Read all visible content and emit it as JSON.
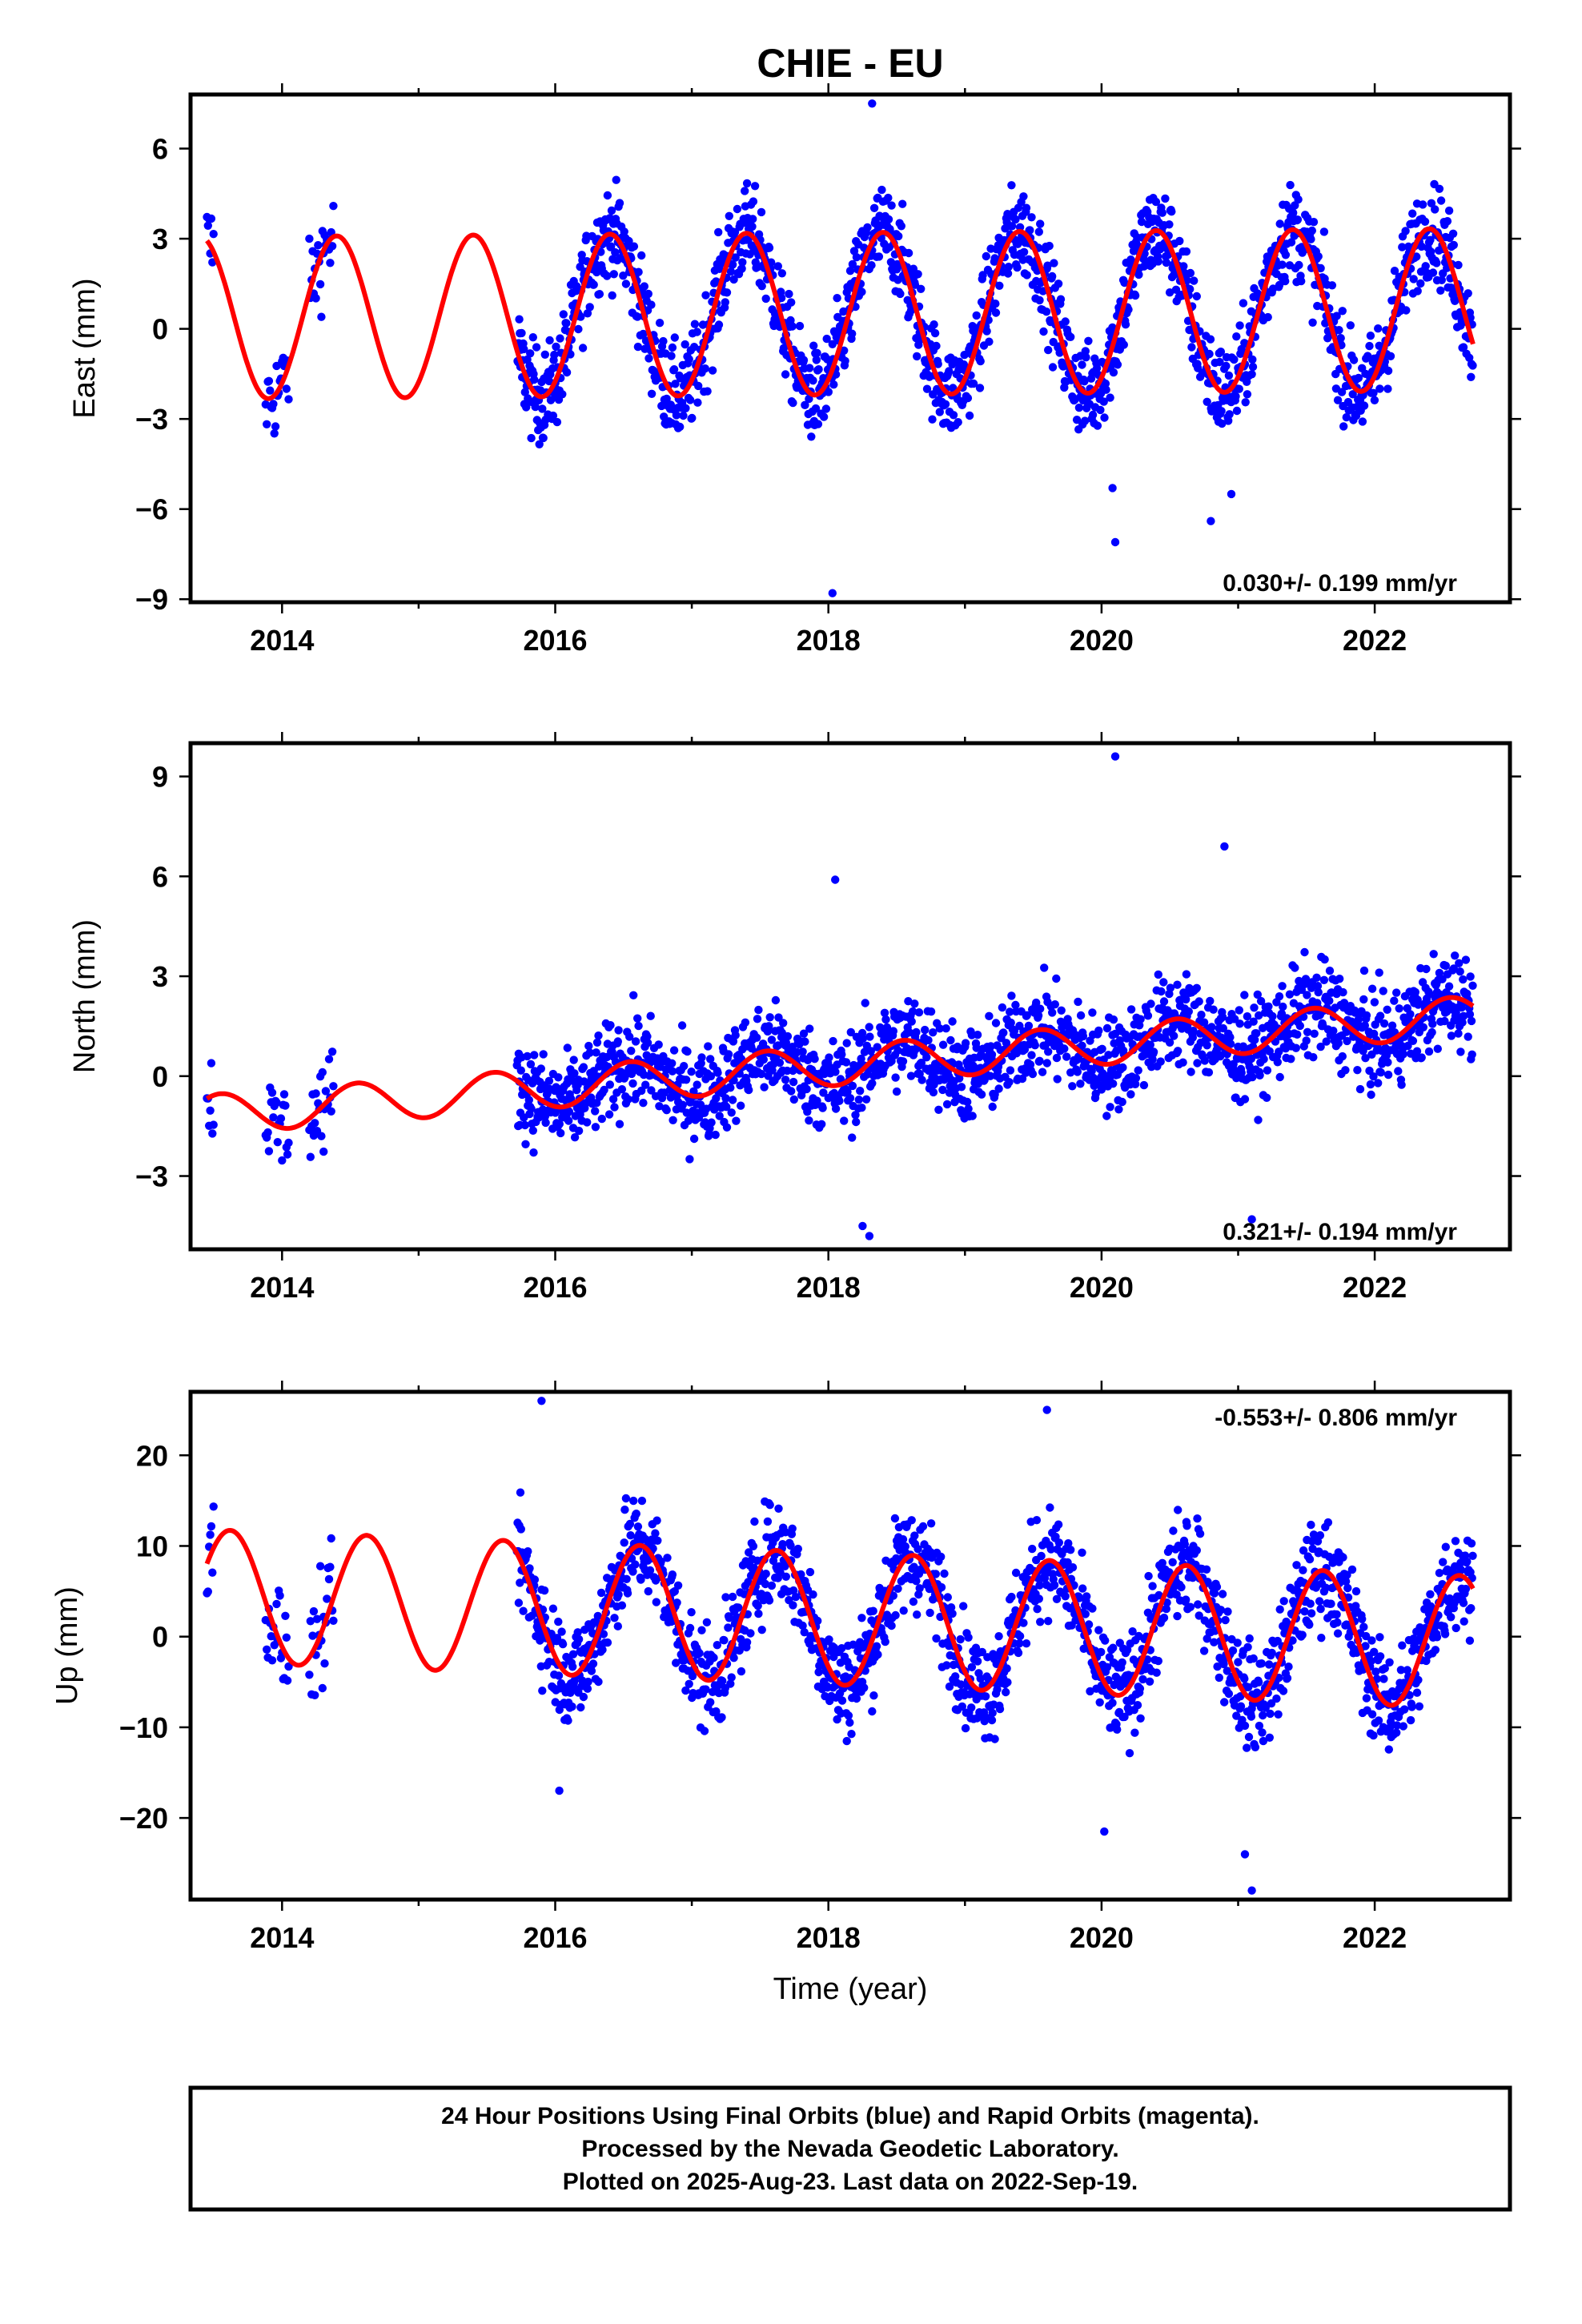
{
  "title": "CHIE - EU",
  "xlabel": "Time (year)",
  "footer": {
    "line1": "24 Hour Positions Using Final Orbits (blue) and Rapid Orbits (magenta).",
    "line2": "Processed by the Nevada Geodetic Laboratory.",
    "line3": "Plotted on 2025-Aug-23. Last data on 2022-Sep-19."
  },
  "colors": {
    "data_points": "#0000ff",
    "model_curve": "#ff0000",
    "frame": "#000000"
  },
  "chart_data": [
    {
      "type": "scatter",
      "component": "east",
      "ylabel": "East (mm)",
      "rate_text": "0.030+/- 0.199 mm/yr",
      "xlim": [
        2013.33,
        2022.99
      ],
      "ylim": [
        -9.1,
        7.8
      ],
      "xticks": [
        "2014",
        "2016",
        "2018",
        "2020",
        "2022"
      ],
      "xtick_values": [
        2014,
        2016,
        2018,
        2020,
        2022
      ],
      "yticks": [
        "6",
        "3",
        "0",
        "−3",
        "−6",
        "−9"
      ],
      "ytick_values": [
        6,
        3,
        0,
        -3,
        -6,
        -9
      ],
      "rate_mm_per_yr": 0.03,
      "model": {
        "offset": 0.5,
        "t0": 2018,
        "annual_amplitude": 2.7,
        "annual_peak_year_fraction": 0.4
      },
      "series": [
        {
          "kind": "data",
          "segments": [
            {
              "start": 2013.45,
              "end": 2013.5,
              "step": 0.008,
              "jitter": 1.1
            },
            {
              "start": 2013.88,
              "end": 2014.05,
              "step": 0.008,
              "jitter": 1.1
            },
            {
              "start": 2014.2,
              "end": 2014.38,
              "step": 0.008,
              "jitter": 1.1
            },
            {
              "start": 2015.72,
              "end": 2022.72,
              "step": 0.0042,
              "jitter": 1.1
            }
          ]
        }
      ],
      "outliers": [
        {
          "x": 2018.32,
          "y": 7.5
        },
        {
          "x": 2018.03,
          "y": -8.8
        },
        {
          "x": 2020.1,
          "y": -7.1
        },
        {
          "x": 2020.8,
          "y": -6.4
        },
        {
          "x": 2020.08,
          "y": -5.3
        },
        {
          "x": 2020.95,
          "y": -5.5
        }
      ]
    },
    {
      "type": "scatter",
      "component": "north",
      "ylabel": "North (mm)",
      "rate_text": "0.321+/- 0.194 mm/yr",
      "xlim": [
        2013.33,
        2022.99
      ],
      "ylim": [
        -5.2,
        10.0
      ],
      "xticks": [
        "2014",
        "2016",
        "2018",
        "2020",
        "2022"
      ],
      "xtick_values": [
        2014,
        2016,
        2018,
        2020,
        2022
      ],
      "yticks": [
        "9",
        "6",
        "3",
        "0",
        "−3"
      ],
      "ytick_values": [
        9,
        6,
        3,
        0,
        -3
      ],
      "rate_mm_per_yr": 0.321,
      "model": {
        "offset": 0.3,
        "t0": 2018,
        "annual_amplitude": 0.6,
        "annual_peak_year_fraction": 0.55
      },
      "series": [
        {
          "kind": "data",
          "segments": [
            {
              "start": 2013.45,
              "end": 2013.5,
              "step": 0.008,
              "jitter": 1.0
            },
            {
              "start": 2013.88,
              "end": 2014.05,
              "step": 0.008,
              "jitter": 1.0
            },
            {
              "start": 2014.2,
              "end": 2014.38,
              "step": 0.008,
              "jitter": 1.0
            },
            {
              "start": 2015.72,
              "end": 2022.72,
              "step": 0.0042,
              "jitter": 1.0
            }
          ]
        }
      ],
      "outliers": [
        {
          "x": 2020.1,
          "y": 9.6
        },
        {
          "x": 2020.9,
          "y": 6.9
        },
        {
          "x": 2018.05,
          "y": 5.9
        },
        {
          "x": 2018.3,
          "y": -4.8
        },
        {
          "x": 2018.25,
          "y": -4.5
        },
        {
          "x": 2021.1,
          "y": -4.3
        }
      ]
    },
    {
      "type": "scatter",
      "component": "up",
      "ylabel": "Up (mm)",
      "rate_text": "-0.553+/- 0.806 mm/yr",
      "xlim": [
        2013.33,
        2022.99
      ],
      "ylim": [
        -29,
        27
      ],
      "xticks": [
        "2014",
        "2016",
        "2018",
        "2020",
        "2022"
      ],
      "xtick_values": [
        2014,
        2016,
        2018,
        2020,
        2022
      ],
      "yticks": [
        "20",
        "10",
        "0",
        "−10",
        "−20"
      ],
      "ytick_values": [
        20,
        10,
        0,
        -10,
        -20
      ],
      "rate_mm_per_yr": -0.553,
      "model": {
        "offset": 2.0,
        "t0": 2018,
        "annual_amplitude": 7.3,
        "annual_peak_year_fraction": 0.62
      },
      "series": [
        {
          "kind": "data",
          "segments": [
            {
              "start": 2013.45,
              "end": 2013.5,
              "step": 0.008,
              "jitter": 4.0
            },
            {
              "start": 2013.88,
              "end": 2014.05,
              "step": 0.008,
              "jitter": 4.0
            },
            {
              "start": 2014.2,
              "end": 2014.38,
              "step": 0.008,
              "jitter": 4.0
            },
            {
              "start": 2015.72,
              "end": 2022.72,
              "step": 0.0042,
              "jitter": 4.0
            }
          ]
        }
      ],
      "outliers": [
        {
          "x": 2015.9,
          "y": 26
        },
        {
          "x": 2019.6,
          "y": 25
        },
        {
          "x": 2021.1,
          "y": -28
        },
        {
          "x": 2021.05,
          "y": -24
        },
        {
          "x": 2020.02,
          "y": -21.5
        },
        {
          "x": 2016.03,
          "y": -17
        }
      ]
    }
  ]
}
